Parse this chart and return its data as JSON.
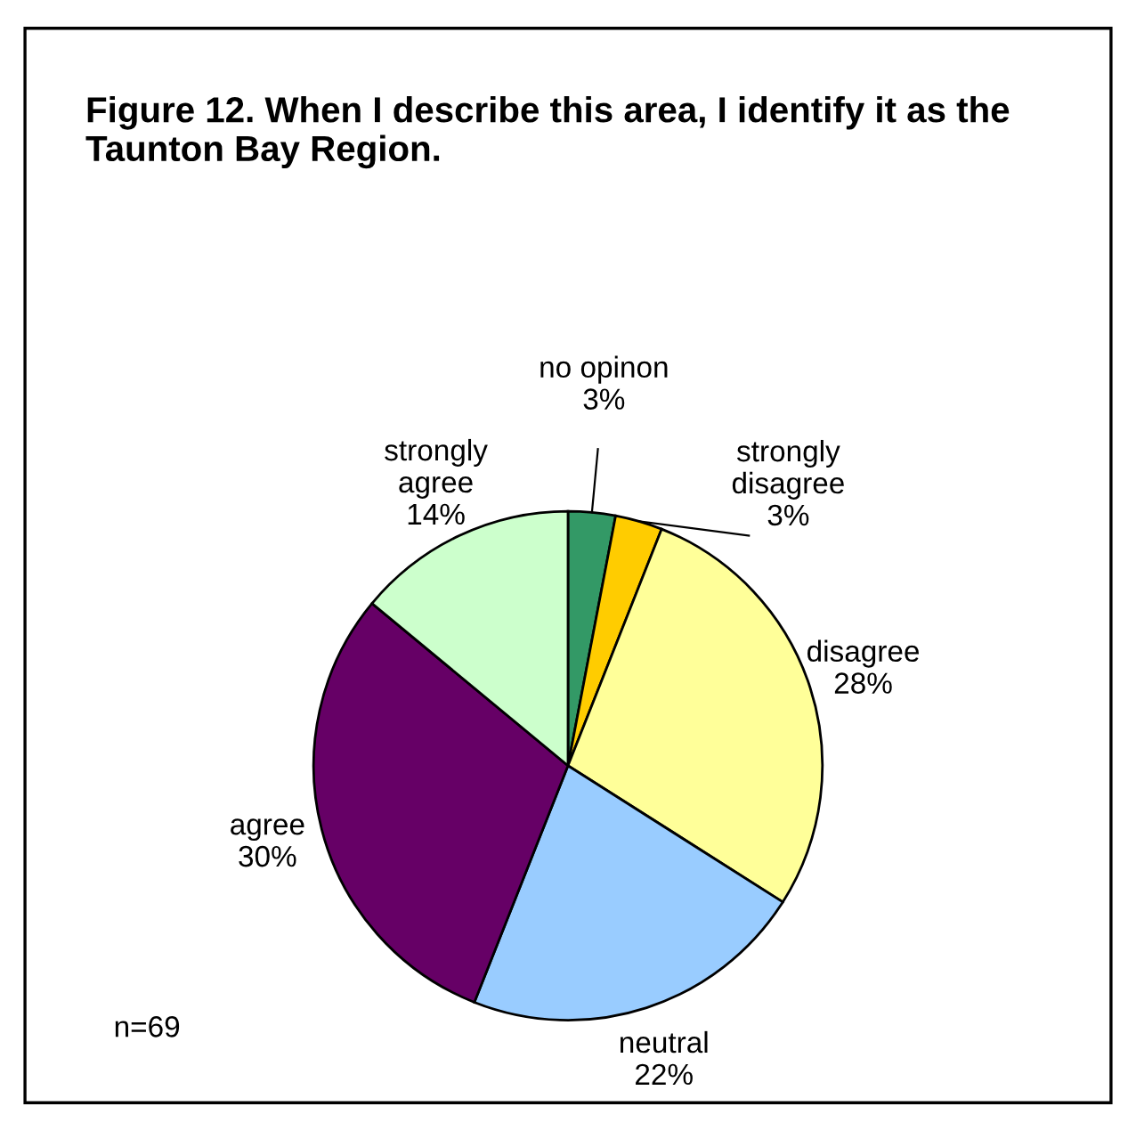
{
  "chart_data": {
    "type": "pie",
    "title": "Figure 12. When I describe this area, I identify it as the Taunton Bay Region.",
    "categories": [
      "no opinon",
      "strongly disagree",
      "disagree",
      "neutral",
      "agree",
      "strongly agree"
    ],
    "values": [
      3,
      3,
      28,
      22,
      30,
      14
    ],
    "value_labels": [
      "3%",
      "3%",
      "28%",
      "22%",
      "30%",
      "14%"
    ],
    "colors": [
      "#339966",
      "#ffcc00",
      "#ffff99",
      "#99ccff",
      "#660066",
      "#ccffcc"
    ],
    "annotations": [
      "n=69"
    ]
  }
}
